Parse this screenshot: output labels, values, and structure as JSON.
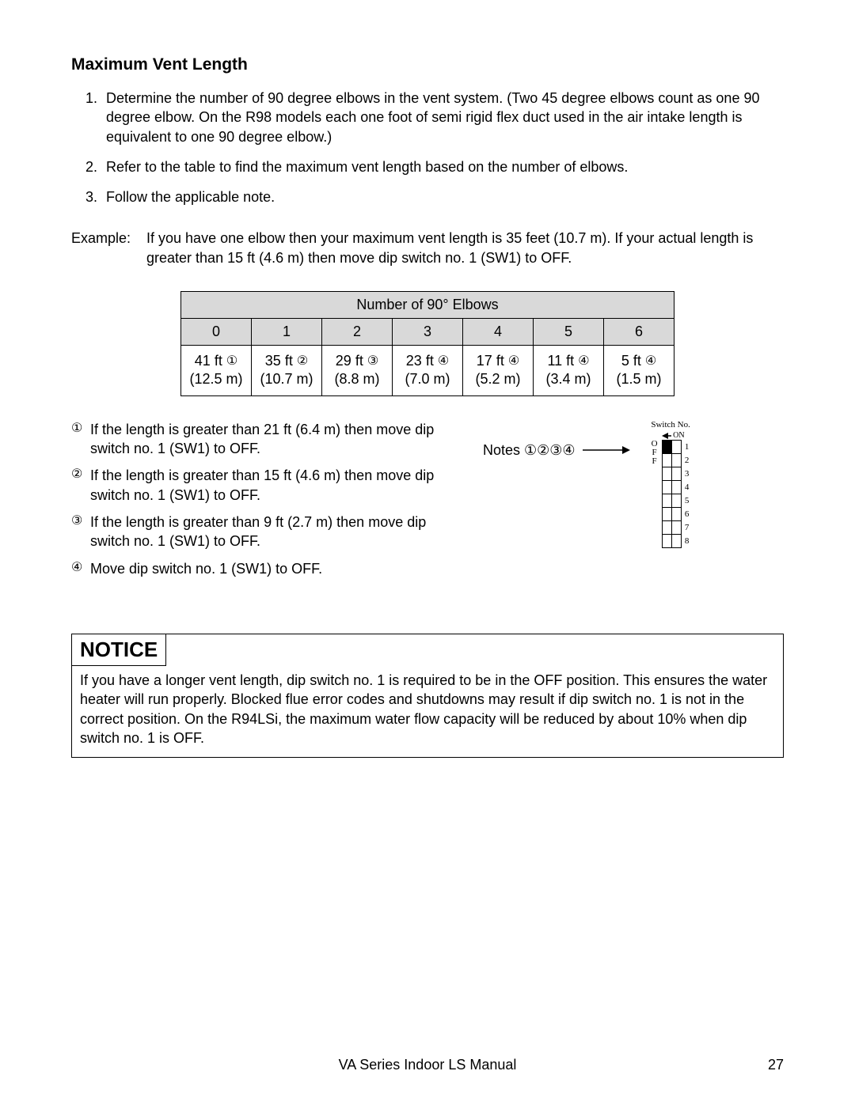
{
  "title": "Maximum Vent Length",
  "steps": [
    "Determine the number of 90 degree elbows in the vent system.  (Two 45 degree elbows count as one 90 degree elbow.  On the R98 models each one foot of semi rigid flex duct used in the air intake length is equivalent to one 90 degree elbow.)",
    "Refer to the table to find the maximum vent length based on the number of elbows.",
    "Follow the applicable note."
  ],
  "example_label": "Example:",
  "example_text": "If you have one elbow then your maximum vent length is 35 feet (10.7 m).  If your actual length is greater than 15 ft (4.6 m) then move dip switch no. 1 (SW1) to OFF.",
  "elbow_table": {
    "header": "Number of 90° Elbows",
    "columns": [
      "0",
      "1",
      "2",
      "3",
      "4",
      "5",
      "6"
    ],
    "cells": [
      {
        "ft": "41 ft",
        "note": "①",
        "m": "(12.5 m)"
      },
      {
        "ft": "35 ft",
        "note": "②",
        "m": "(10.7 m)"
      },
      {
        "ft": "29 ft",
        "note": "③",
        "m": "(8.8 m)"
      },
      {
        "ft": "23 ft",
        "note": "④",
        "m": "(7.0 m)"
      },
      {
        "ft": "17 ft",
        "note": "④",
        "m": "(5.2 m)"
      },
      {
        "ft": "11 ft",
        "note": "④",
        "m": "(3.4 m)"
      },
      {
        "ft": "5 ft",
        "note": "④",
        "m": "(1.5 m)"
      }
    ],
    "header_bg": "#d9d9d9"
  },
  "notes": [
    {
      "mark": "①",
      "text": "If the length is greater than 21 ft (6.4 m) then move dip switch no. 1 (SW1) to OFF."
    },
    {
      "mark": "②",
      "text": "If the length is greater than 15 ft (4.6 m) then move dip switch no. 1 (SW1) to OFF."
    },
    {
      "mark": "③",
      "text": "If the length is greater than 9 ft (2.7 m) then move dip switch no. 1 (SW1) to OFF."
    },
    {
      "mark": "④",
      "text": "Move dip switch no. 1 (SW1) to OFF."
    }
  ],
  "notes_label": "Notes ①②③④",
  "dipswitch": {
    "title": "Switch No.",
    "on_label": "ON",
    "off_label_chars": [
      "O",
      "F",
      "F"
    ],
    "rows": 8,
    "filled_row": 1
  },
  "notice_title": "NOTICE",
  "notice_text": "If you have a longer vent length, dip switch no. 1 is required to be in the  OFF position.  This ensures the water heater will run properly.  Blocked flue error codes and shutdowns may result if dip switch no. 1 is not in the correct position.  On the R94LSi, the maximum water flow capacity will be reduced by about 10% when dip switch no. 1 is OFF.",
  "footer_center": "VA Series Indoor LS Manual",
  "footer_page": "27"
}
